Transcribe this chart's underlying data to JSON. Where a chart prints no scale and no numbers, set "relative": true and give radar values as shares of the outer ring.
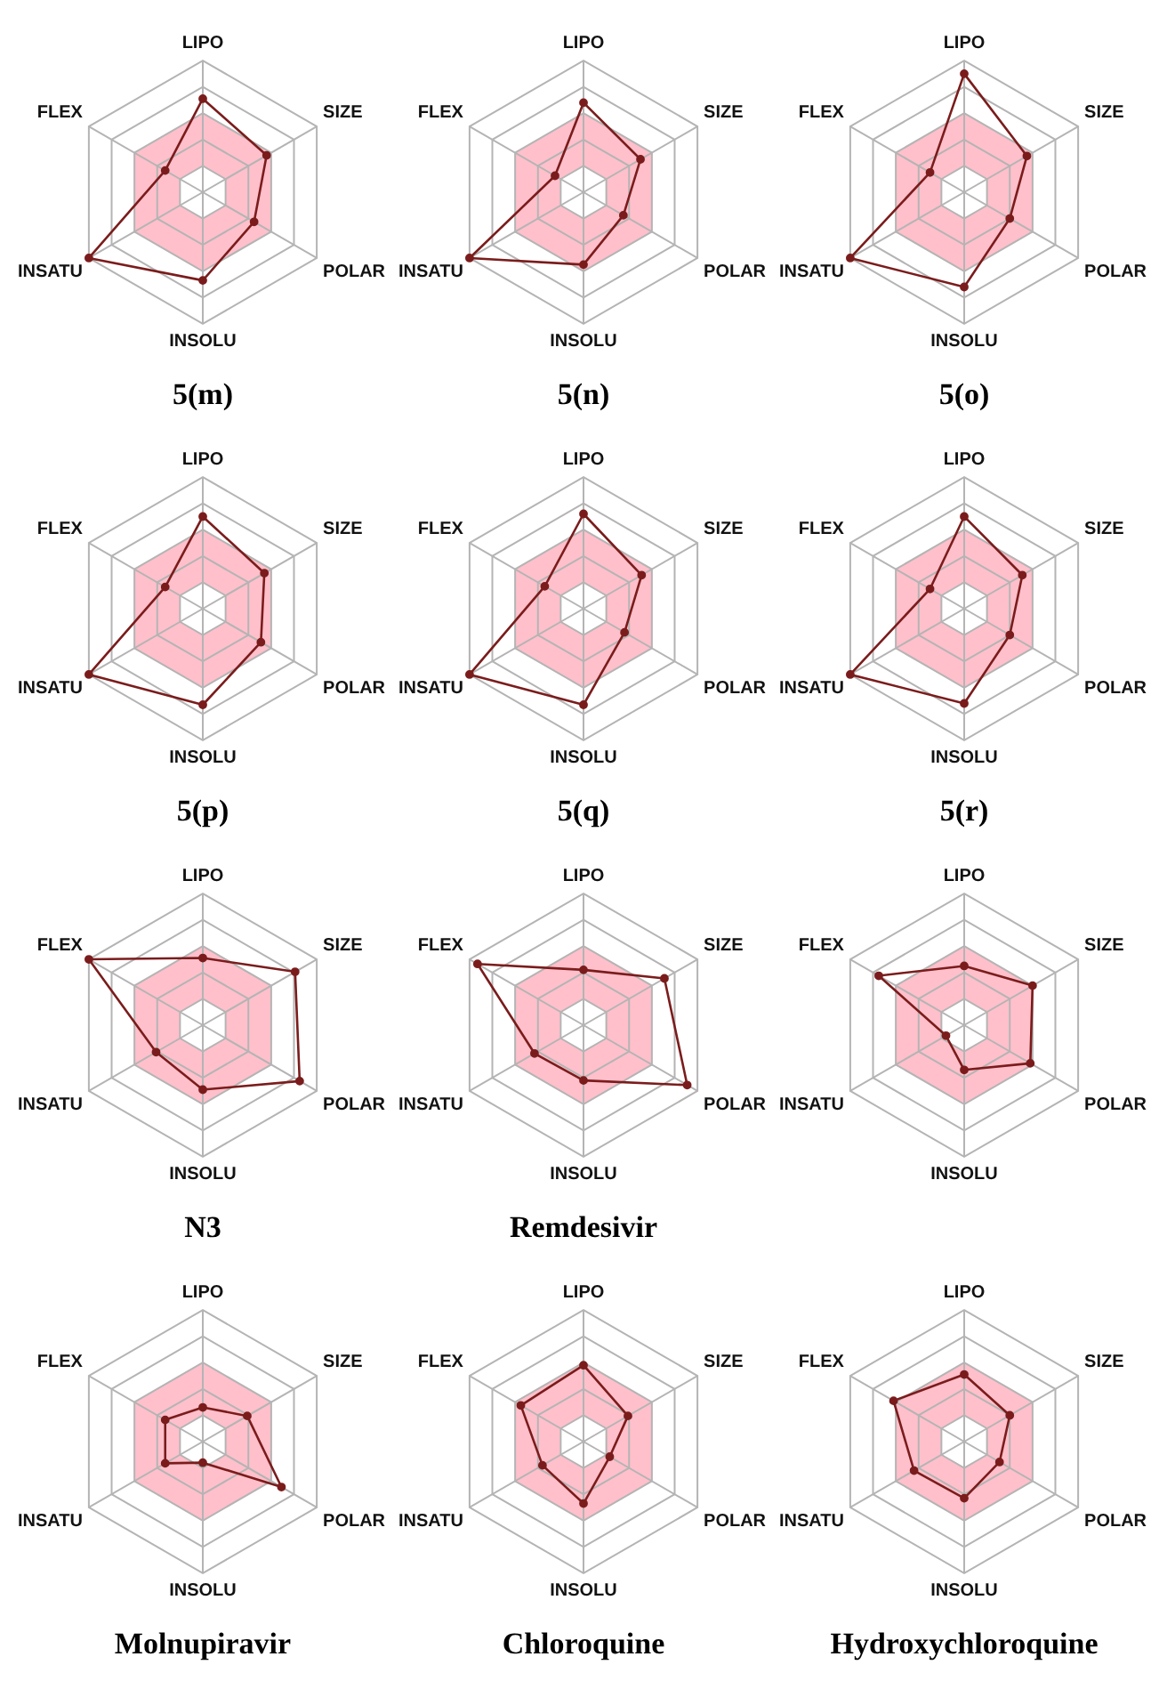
{
  "chart_data": [
    {
      "type": "radar",
      "title": "5(m)",
      "categories": [
        "LIPO",
        "SIZE",
        "POLAR",
        "INSOLU",
        "INSATU",
        "FLEX"
      ],
      "relative": true,
      "legend": false,
      "marker": "circle",
      "series": [
        {
          "color": "#7b1c1c",
          "values": [
            0.71,
            0.56,
            0.45,
            0.67,
            1.0,
            0.33
          ]
        }
      ]
    },
    {
      "type": "radar",
      "title": "5(n)",
      "categories": [
        "LIPO",
        "SIZE",
        "POLAR",
        "INSOLU",
        "INSATU",
        "FLEX"
      ],
      "relative": true,
      "legend": false,
      "marker": "circle",
      "series": [
        {
          "color": "#7b1c1c",
          "values": [
            0.68,
            0.5,
            0.35,
            0.55,
            1.0,
            0.25
          ]
        }
      ]
    },
    {
      "type": "radar",
      "title": "5(o)",
      "categories": [
        "LIPO",
        "SIZE",
        "POLAR",
        "INSOLU",
        "INSATU",
        "FLEX"
      ],
      "relative": true,
      "legend": false,
      "marker": "circle",
      "series": [
        {
          "color": "#7b1c1c",
          "values": [
            0.9,
            0.55,
            0.4,
            0.72,
            1.0,
            0.3
          ]
        }
      ]
    },
    {
      "type": "radar",
      "title": "5(p)",
      "categories": [
        "LIPO",
        "SIZE",
        "POLAR",
        "INSOLU",
        "INSATU",
        "FLEX"
      ],
      "relative": true,
      "legend": false,
      "marker": "circle",
      "series": [
        {
          "color": "#7b1c1c",
          "values": [
            0.7,
            0.54,
            0.51,
            0.73,
            1.0,
            0.33
          ]
        }
      ]
    },
    {
      "type": "radar",
      "title": "5(q)",
      "categories": [
        "LIPO",
        "SIZE",
        "POLAR",
        "INSOLU",
        "INSATU",
        "FLEX"
      ],
      "relative": true,
      "legend": false,
      "marker": "circle",
      "series": [
        {
          "color": "#7b1c1c",
          "values": [
            0.72,
            0.51,
            0.36,
            0.73,
            1.0,
            0.34
          ]
        }
      ]
    },
    {
      "type": "radar",
      "title": "5(r)",
      "categories": [
        "LIPO",
        "SIZE",
        "POLAR",
        "INSOLU",
        "INSATU",
        "FLEX"
      ],
      "relative": true,
      "legend": false,
      "marker": "circle",
      "series": [
        {
          "color": "#7b1c1c",
          "values": [
            0.7,
            0.51,
            0.4,
            0.72,
            1.0,
            0.3
          ]
        }
      ]
    },
    {
      "type": "radar",
      "title": "N3",
      "categories": [
        "LIPO",
        "SIZE",
        "POLAR",
        "INSOLU",
        "INSATU",
        "FLEX"
      ],
      "relative": true,
      "legend": false,
      "marker": "circle",
      "series": [
        {
          "color": "#7b1c1c",
          "values": [
            0.51,
            0.81,
            0.85,
            0.49,
            0.41,
            1.0
          ]
        }
      ]
    },
    {
      "type": "radar",
      "title": "Remdesivir",
      "categories": [
        "LIPO",
        "SIZE",
        "POLAR",
        "INSOLU",
        "INSATU",
        "FLEX"
      ],
      "relative": true,
      "legend": false,
      "marker": "circle",
      "series": [
        {
          "color": "#7b1c1c",
          "values": [
            0.42,
            0.71,
            0.91,
            0.42,
            0.43,
            0.93
          ]
        }
      ]
    },
    {
      "type": "radar",
      "categories": [
        "LIPO",
        "SIZE",
        "POLAR",
        "INSOLU",
        "INSATU",
        "FLEX"
      ],
      "relative": true,
      "legend": false,
      "marker": "circle",
      "series": [
        {
          "color": "#7b1c1c",
          "values": [
            0.45,
            0.6,
            0.58,
            0.34,
            0.16,
            0.75
          ]
        }
      ]
    },
    {
      "type": "radar",
      "title": "Molnupiravir",
      "categories": [
        "LIPO",
        "SIZE",
        "POLAR",
        "INSOLU",
        "INSATU",
        "FLEX"
      ],
      "relative": true,
      "legend": false,
      "marker": "circle",
      "series": [
        {
          "color": "#7b1c1c",
          "values": [
            0.26,
            0.39,
            0.69,
            0.16,
            0.33,
            0.33
          ]
        }
      ]
    },
    {
      "type": "radar",
      "title": "Chloroquine",
      "categories": [
        "LIPO",
        "SIZE",
        "POLAR",
        "INSOLU",
        "INSATU",
        "FLEX"
      ],
      "relative": true,
      "legend": false,
      "marker": "circle",
      "series": [
        {
          "color": "#7b1c1c",
          "values": [
            0.58,
            0.39,
            0.23,
            0.47,
            0.36,
            0.55
          ]
        }
      ]
    },
    {
      "type": "radar",
      "title": "Hydroxychloroquine",
      "categories": [
        "LIPO",
        "SIZE",
        "POLAR",
        "INSOLU",
        "INSATU",
        "FLEX"
      ],
      "relative": true,
      "legend": false,
      "marker": "circle",
      "series": [
        {
          "color": "#7b1c1c",
          "values": [
            0.51,
            0.4,
            0.31,
            0.43,
            0.44,
            0.62
          ]
        }
      ]
    }
  ]
}
